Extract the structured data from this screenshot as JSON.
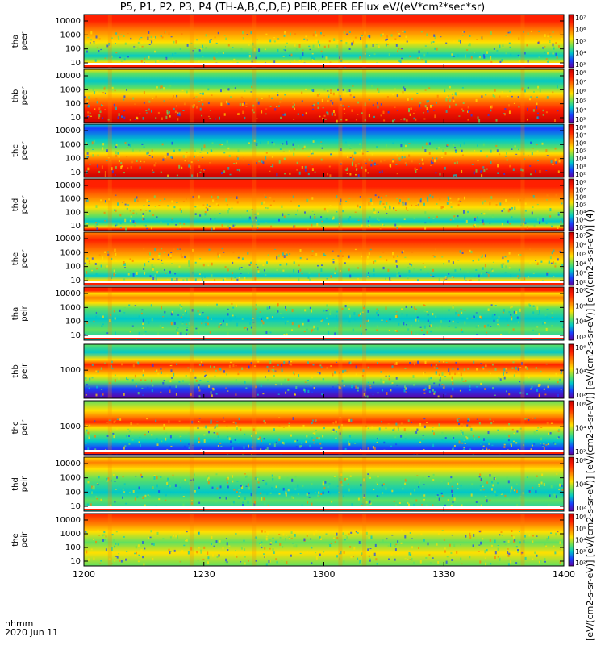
{
  "title": "P5, P1, P2, P3, P4 (TH-A,B,C,D,E) PEIR,PEER EFlux eV/(eV*cm²*sec*sr)",
  "time_axis_tag": "hhmm",
  "date_label": "2020 Jun 11",
  "colorbar_units": "[eV/(cm2-s-sr-eV)] [eV/(cm2-s-sr-eV)] [eV/(cm2-s-sr-eV)] [eV/(cm2-s-sr-eV)] [eV/(cm2-s-sr-eV)] (4)",
  "chart_data": {
    "type": "heatmap",
    "x_ticks": [
      "1200",
      "1230",
      "1300",
      "1330",
      "1400"
    ],
    "x_range": [
      "1200",
      "1400"
    ],
    "panels": [
      {
        "name": "tha\npeer",
        "y_ticks": [
          "10",
          "100",
          "1000",
          "10000"
        ],
        "colorbar_ticks": [
          "10³",
          "10⁴",
          "10⁵",
          "10⁶",
          "10⁷"
        ]
      },
      {
        "name": "thb\npeer",
        "y_ticks": [
          "10",
          "100",
          "1000",
          "10000"
        ],
        "colorbar_ticks": [
          "10³",
          "10⁴",
          "10⁵",
          "10⁶",
          "10⁷",
          "10⁸"
        ]
      },
      {
        "name": "thc\npeer",
        "y_ticks": [
          "10",
          "100",
          "1000",
          "10000"
        ],
        "colorbar_ticks": [
          "10²",
          "10³",
          "10⁴",
          "10⁵",
          "10⁶",
          "10⁷",
          "10⁸"
        ]
      },
      {
        "name": "thd\npeer",
        "y_ticks": [
          "10",
          "100",
          "1000",
          "10000"
        ],
        "colorbar_ticks": [
          "10²",
          "10³",
          "10⁴",
          "10⁵",
          "10⁶",
          "10⁷",
          "10⁸"
        ]
      },
      {
        "name": "the\npeer",
        "y_ticks": [
          "10",
          "100",
          "1000",
          "10000"
        ],
        "colorbar_ticks": [
          "10²",
          "10³",
          "10⁴",
          "10⁵",
          "10⁶",
          "10⁷"
        ]
      },
      {
        "name": "tha\npeir",
        "y_ticks": [
          "10",
          "100",
          "1000",
          "10000"
        ],
        "colorbar_ticks": [
          "10³",
          "10⁴",
          "10⁵",
          "10⁶"
        ]
      },
      {
        "name": "thb\npeir",
        "y_ticks": [
          "1000"
        ],
        "colorbar_ticks": [
          "10²",
          "10⁴",
          "10⁶"
        ]
      },
      {
        "name": "thc\npeir",
        "y_ticks": [
          "1000"
        ],
        "colorbar_ticks": [
          "10²",
          "10⁴",
          "10⁶"
        ]
      },
      {
        "name": "thd\npeir",
        "y_ticks": [
          "10",
          "100",
          "1000",
          "10000"
        ],
        "colorbar_ticks": [
          "10²",
          "10⁴",
          "10⁶"
        ]
      },
      {
        "name": "the\npeir",
        "y_ticks": [
          "10",
          "100",
          "1000",
          "10000"
        ],
        "colorbar_ticks": [
          "10²",
          "10³",
          "10⁴",
          "10⁵",
          "10⁶"
        ]
      }
    ],
    "colors": {
      "dark_red": "#c80000",
      "red": "#ff2000",
      "orange": "#ff8000",
      "yellow": "#ffe000",
      "green": "#60e060",
      "cyan": "#00c8c8",
      "blue": "#1840ff",
      "purple": "#6000a0"
    }
  }
}
